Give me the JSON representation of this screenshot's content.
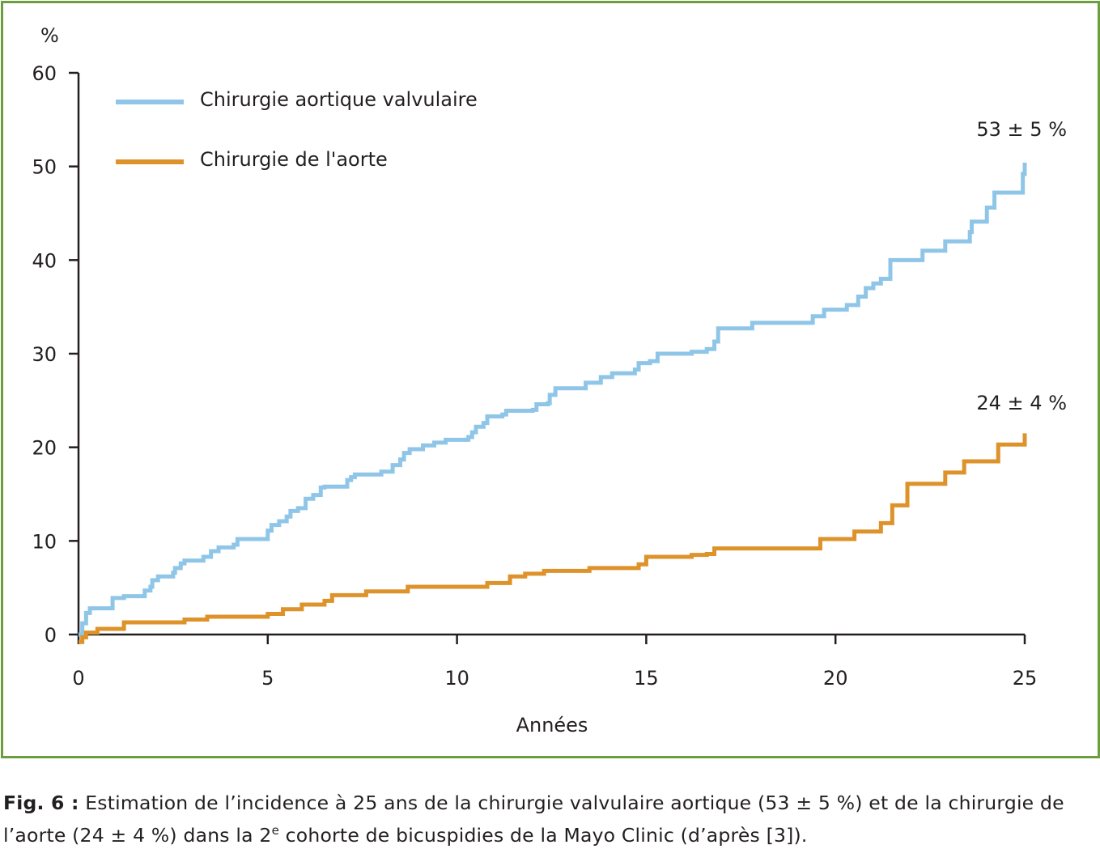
{
  "chart_data": {
    "type": "line",
    "xlabel": "Années",
    "ylabel": "%",
    "xlim": [
      0,
      25
    ],
    "ylim": [
      0,
      60
    ],
    "x_ticks": [
      0,
      5,
      10,
      15,
      20,
      25
    ],
    "y_ticks": [
      0,
      10,
      20,
      30,
      40,
      50,
      60
    ],
    "grid": false,
    "legend_position": "top-left",
    "series": [
      {
        "name": "Chirurgie aortique valvulaire",
        "color": "#8fc6e8",
        "end_label": "53 ± 5 %",
        "points": [
          [
            0,
            0
          ],
          [
            0.1,
            1.2
          ],
          [
            0.2,
            2.3
          ],
          [
            0.3,
            2.8
          ],
          [
            0.9,
            2.8
          ],
          [
            0.9,
            3.9
          ],
          [
            1.2,
            4.1
          ],
          [
            1.7,
            4.1
          ],
          [
            1.75,
            4.7
          ],
          [
            1.9,
            5.1
          ],
          [
            1.95,
            5.8
          ],
          [
            2.1,
            6.2
          ],
          [
            2.5,
            6.6
          ],
          [
            2.55,
            7.1
          ],
          [
            2.7,
            7.6
          ],
          [
            2.8,
            7.9
          ],
          [
            3.2,
            7.9
          ],
          [
            3.3,
            8.3
          ],
          [
            3.5,
            8.9
          ],
          [
            3.7,
            9.3
          ],
          [
            4.1,
            9.6
          ],
          [
            4.2,
            10.2
          ],
          [
            4.9,
            10.2
          ],
          [
            5.0,
            11.1
          ],
          [
            5.1,
            11.7
          ],
          [
            5.3,
            12.1
          ],
          [
            5.5,
            12.6
          ],
          [
            5.6,
            13.2
          ],
          [
            5.8,
            13.5
          ],
          [
            6.0,
            14.5
          ],
          [
            6.2,
            14.9
          ],
          [
            6.4,
            15.7
          ],
          [
            6.5,
            15.8
          ],
          [
            7.0,
            15.8
          ],
          [
            7.1,
            16.5
          ],
          [
            7.2,
            16.8
          ],
          [
            7.3,
            17.1
          ],
          [
            8.0,
            17.4
          ],
          [
            8.3,
            18.1
          ],
          [
            8.5,
            18.7
          ],
          [
            8.6,
            19.4
          ],
          [
            8.75,
            19.8
          ],
          [
            9.1,
            20.2
          ],
          [
            9.4,
            20.5
          ],
          [
            9.7,
            20.8
          ],
          [
            10.3,
            21.1
          ],
          [
            10.4,
            21.6
          ],
          [
            10.5,
            22.2
          ],
          [
            10.7,
            22.6
          ],
          [
            10.8,
            23.3
          ],
          [
            11.2,
            23.5
          ],
          [
            11.3,
            23.9
          ],
          [
            12.0,
            24.0
          ],
          [
            12.1,
            24.6
          ],
          [
            12.4,
            24.7
          ],
          [
            12.45,
            25.6
          ],
          [
            12.6,
            26.3
          ],
          [
            13.4,
            26.9
          ],
          [
            13.8,
            27.5
          ],
          [
            14.1,
            27.9
          ],
          [
            14.7,
            28.3
          ],
          [
            14.8,
            29.0
          ],
          [
            15.1,
            29.2
          ],
          [
            15.3,
            30.0
          ],
          [
            16.2,
            30.2
          ],
          [
            16.6,
            30.5
          ],
          [
            16.8,
            31.3
          ],
          [
            16.9,
            32.7
          ],
          [
            17.8,
            33.3
          ],
          [
            19.3,
            33.3
          ],
          [
            19.4,
            34.0
          ],
          [
            19.7,
            34.7
          ],
          [
            20.3,
            35.2
          ],
          [
            20.6,
            36.1
          ],
          [
            20.8,
            37.0
          ],
          [
            21.0,
            37.5
          ],
          [
            21.2,
            38.0
          ],
          [
            21.45,
            40.0
          ],
          [
            22.3,
            41.0
          ],
          [
            22.9,
            42.0
          ],
          [
            23.55,
            43.0
          ],
          [
            23.6,
            44.1
          ],
          [
            24.0,
            45.6
          ],
          [
            24.2,
            47.2
          ],
          [
            24.9,
            47.2
          ],
          [
            24.95,
            49.2
          ],
          [
            25.0,
            50.4
          ]
        ]
      },
      {
        "name": "Chirurgie de l'aorte",
        "color": "#de922a",
        "end_label": "24 ± 4 %",
        "points": [
          [
            0,
            -0.8
          ],
          [
            0.1,
            -0.3
          ],
          [
            0.2,
            0.2
          ],
          [
            0.5,
            0.6
          ],
          [
            1.2,
            1.3
          ],
          [
            2.8,
            1.6
          ],
          [
            3.4,
            1.9
          ],
          [
            5.0,
            2.2
          ],
          [
            5.4,
            2.7
          ],
          [
            5.9,
            3.2
          ],
          [
            6.5,
            3.6
          ],
          [
            6.7,
            4.2
          ],
          [
            7.6,
            4.6
          ],
          [
            8.7,
            5.1
          ],
          [
            10.8,
            5.5
          ],
          [
            11.4,
            6.2
          ],
          [
            11.8,
            6.5
          ],
          [
            12.3,
            6.8
          ],
          [
            13.5,
            7.1
          ],
          [
            14.8,
            7.5
          ],
          [
            15.0,
            8.3
          ],
          [
            16.2,
            8.5
          ],
          [
            16.6,
            8.6
          ],
          [
            16.8,
            9.2
          ],
          [
            19.6,
            10.2
          ],
          [
            20.5,
            11.0
          ],
          [
            21.2,
            11.9
          ],
          [
            21.5,
            13.8
          ],
          [
            21.9,
            16.1
          ],
          [
            22.9,
            17.3
          ],
          [
            23.4,
            18.5
          ],
          [
            24.3,
            20.3
          ],
          [
            25.0,
            21.5
          ]
        ]
      }
    ]
  },
  "caption": {
    "label": "Fig. 6 :",
    "line1": " Estimation de l’incidence à 25 ans de la chirurgie valvulaire aortique (53 ± 5 %) et de la chirurgie de",
    "line2_a": "l’aorte (24 ± 4 %) dans la 2",
    "superscript": "e",
    "line2_b": " cohorte de bicuspidies de la Mayo Clinic (d’après [3])."
  }
}
